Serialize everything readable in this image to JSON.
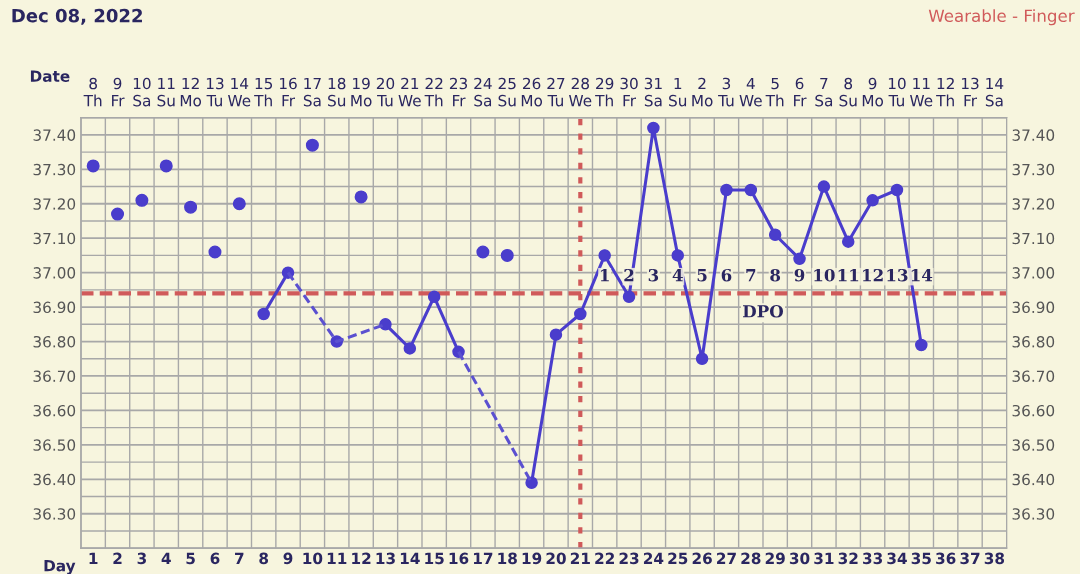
{
  "chart_data": {
    "type": "line",
    "title": "Dec 08, 2022",
    "subtitle": "Wearable - Finger",
    "xlabel": "Day",
    "x2label": "Date",
    "series": [
      {
        "type": "line",
        "color": "#4a3dcc",
        "line_style": "solid",
        "marker": "circle",
        "x": [
          8,
          9,
          10,
          11,
          12,
          13,
          14,
          15,
          16,
          17,
          19,
          20,
          21,
          22,
          23,
          24,
          25,
          26,
          27,
          28,
          29,
          30,
          31,
          32,
          33,
          34,
          35
        ],
        "values": [
          36.88,
          37.0,
          null,
          36.8,
          null,
          36.85,
          36.78,
          36.93,
          36.77,
          null,
          36.39,
          36.82,
          36.88,
          37.05,
          36.93,
          37.42,
          37.05,
          36.75,
          37.24,
          37.24,
          37.11,
          37.04,
          37.25,
          37.09,
          37.21,
          37.24,
          36.79
        ]
      },
      {
        "type": "line",
        "color": "#5b50d0",
        "line_style": "dashed",
        "marker": "none",
        "x": [
          9,
          11,
          13
        ],
        "values": [
          37.0,
          36.8,
          36.85
        ]
      },
      {
        "type": "line",
        "color": "#5b50d0",
        "line_style": "dashed",
        "marker": "none",
        "x": [
          16,
          19
        ],
        "values": [
          36.77,
          36.39
        ]
      },
      {
        "type": "scatter",
        "color": "#4a3dcc",
        "marker": "circle",
        "x": [
          1,
          2,
          3,
          4,
          5,
          6,
          7,
          10,
          12,
          17,
          18
        ],
        "values": [
          37.31,
          37.17,
          37.21,
          37.31,
          37.19,
          37.06,
          37.2,
          37.37,
          37.22,
          37.06,
          37.05
        ]
      }
    ],
    "xlim": [
      0.5,
      38.5
    ],
    "xticks": [
      1,
      2,
      3,
      4,
      5,
      6,
      7,
      8,
      9,
      10,
      11,
      12,
      13,
      14,
      15,
      16,
      17,
      18,
      19,
      20,
      21,
      22,
      23,
      24,
      25,
      26,
      27,
      28,
      29,
      30,
      31,
      32,
      33,
      34,
      35,
      36,
      37,
      38
    ],
    "x2lim": [
      "2022-12-07T12:00",
      "2023-01-14T12:00"
    ],
    "x2ticks": [
      {
        "value": "2022-12-08",
        "label": "8\nTh"
      },
      {
        "value": "2022-12-09",
        "label": "9\nFr"
      },
      {
        "value": "2022-12-10",
        "label": "10\nSa"
      },
      {
        "value": "2022-12-11",
        "label": "11\nSu"
      },
      {
        "value": "2022-12-12",
        "label": "12\nMo"
      },
      {
        "value": "2022-12-13",
        "label": "13\nTu"
      },
      {
        "value": "2022-12-14",
        "label": "14\nWe"
      },
      {
        "value": "2022-12-15",
        "label": "15\nTh"
      },
      {
        "value": "2022-12-16",
        "label": "16\nFr"
      },
      {
        "value": "2022-12-17",
        "label": "17\nSa"
      },
      {
        "value": "2022-12-18",
        "label": "18\nSu"
      },
      {
        "value": "2022-12-19",
        "label": "19\nMo"
      },
      {
        "value": "2022-12-20",
        "label": "20\nTu"
      },
      {
        "value": "2022-12-21",
        "label": "21\nWe"
      },
      {
        "value": "2022-12-22",
        "label": "22\nTh"
      },
      {
        "value": "2022-12-23",
        "label": "23\nFr"
      },
      {
        "value": "2022-12-24",
        "label": "24\nSa"
      },
      {
        "value": "2022-12-25",
        "label": "25\nSu"
      },
      {
        "value": "2022-12-26",
        "label": "26\nMo"
      },
      {
        "value": "2022-12-27",
        "label": "27\nTu"
      },
      {
        "value": "2022-12-28",
        "label": "28\nWe"
      },
      {
        "value": "2022-12-29",
        "label": "29\nTh"
      },
      {
        "value": "2022-12-30",
        "label": "30\nFr"
      },
      {
        "value": "2022-12-31",
        "label": "31\nSa"
      },
      {
        "value": "2023-01-01",
        "label": "1\nSu"
      },
      {
        "value": "2023-01-02",
        "label": "2\nMo"
      },
      {
        "value": "2023-01-03",
        "label": "3\nTu"
      },
      {
        "value": "2023-01-04",
        "label": "4\nWe"
      },
      {
        "value": "2023-01-05",
        "label": "5\nTh"
      },
      {
        "value": "2023-01-06",
        "label": "6\nFr"
      },
      {
        "value": "2023-01-07",
        "label": "7\nSa"
      },
      {
        "value": "2023-01-08",
        "label": "8\nSu"
      },
      {
        "value": "2023-01-09",
        "label": "9\nMo"
      },
      {
        "value": "2023-01-10",
        "label": "10\nTu"
      },
      {
        "value": "2023-01-11",
        "label": "11\nWe"
      },
      {
        "value": "2023-01-12",
        "label": "12\nTh"
      },
      {
        "value": "2023-01-13",
        "label": "13\nFr"
      },
      {
        "value": "2023-01-14",
        "label": "14\nSa"
      }
    ],
    "ylim": [
      36.2,
      37.45
    ],
    "yticks": [
      {
        "value": 36.3,
        "label": "36.30"
      },
      {
        "value": 36.4,
        "label": "36.40"
      },
      {
        "value": 36.5,
        "label": "36.50"
      },
      {
        "value": 36.6,
        "label": "36.60"
      },
      {
        "value": 36.7,
        "label": "36.70"
      },
      {
        "value": 36.8,
        "label": "36.80"
      },
      {
        "value": 36.9,
        "label": "36.90"
      },
      {
        "value": 37.0,
        "label": "37.00"
      },
      {
        "value": 37.1,
        "label": "37.10"
      },
      {
        "value": 37.2,
        "label": "37.20"
      },
      {
        "value": 37.3,
        "label": "37.30"
      },
      {
        "value": 37.4,
        "label": "37.40"
      }
    ],
    "y2lim": [
      36.2,
      37.45
    ],
    "y2ticks": [
      {
        "value": 36.3,
        "label": "36.30"
      },
      {
        "value": 36.4,
        "label": "36.40"
      },
      {
        "value": 36.5,
        "label": "36.50"
      },
      {
        "value": 36.6,
        "label": "36.60"
      },
      {
        "value": 36.7,
        "label": "36.70"
      },
      {
        "value": 36.8,
        "label": "36.80"
      },
      {
        "value": 36.9,
        "label": "36.90"
      },
      {
        "value": 37.0,
        "label": "37.00"
      },
      {
        "value": 37.1,
        "label": "37.10"
      },
      {
        "value": 37.2,
        "label": "37.20"
      },
      {
        "value": 37.3,
        "label": "37.30"
      },
      {
        "value": 37.4,
        "label": "37.40"
      }
    ],
    "ref_lines": [
      {
        "axis": "y",
        "value": 36.94,
        "color": "#d05a5a",
        "line_style": "dashed"
      },
      {
        "axis": "x",
        "value": 21,
        "color": "#d05a5a",
        "line_style": "dotted"
      }
    ],
    "annotations": [
      "1",
      "2",
      "3",
      "4",
      "5",
      "6",
      "7",
      "8",
      "9",
      "10",
      "11",
      "12",
      "13",
      "14",
      "DPO"
    ],
    "grid": true,
    "legend": false
  }
}
